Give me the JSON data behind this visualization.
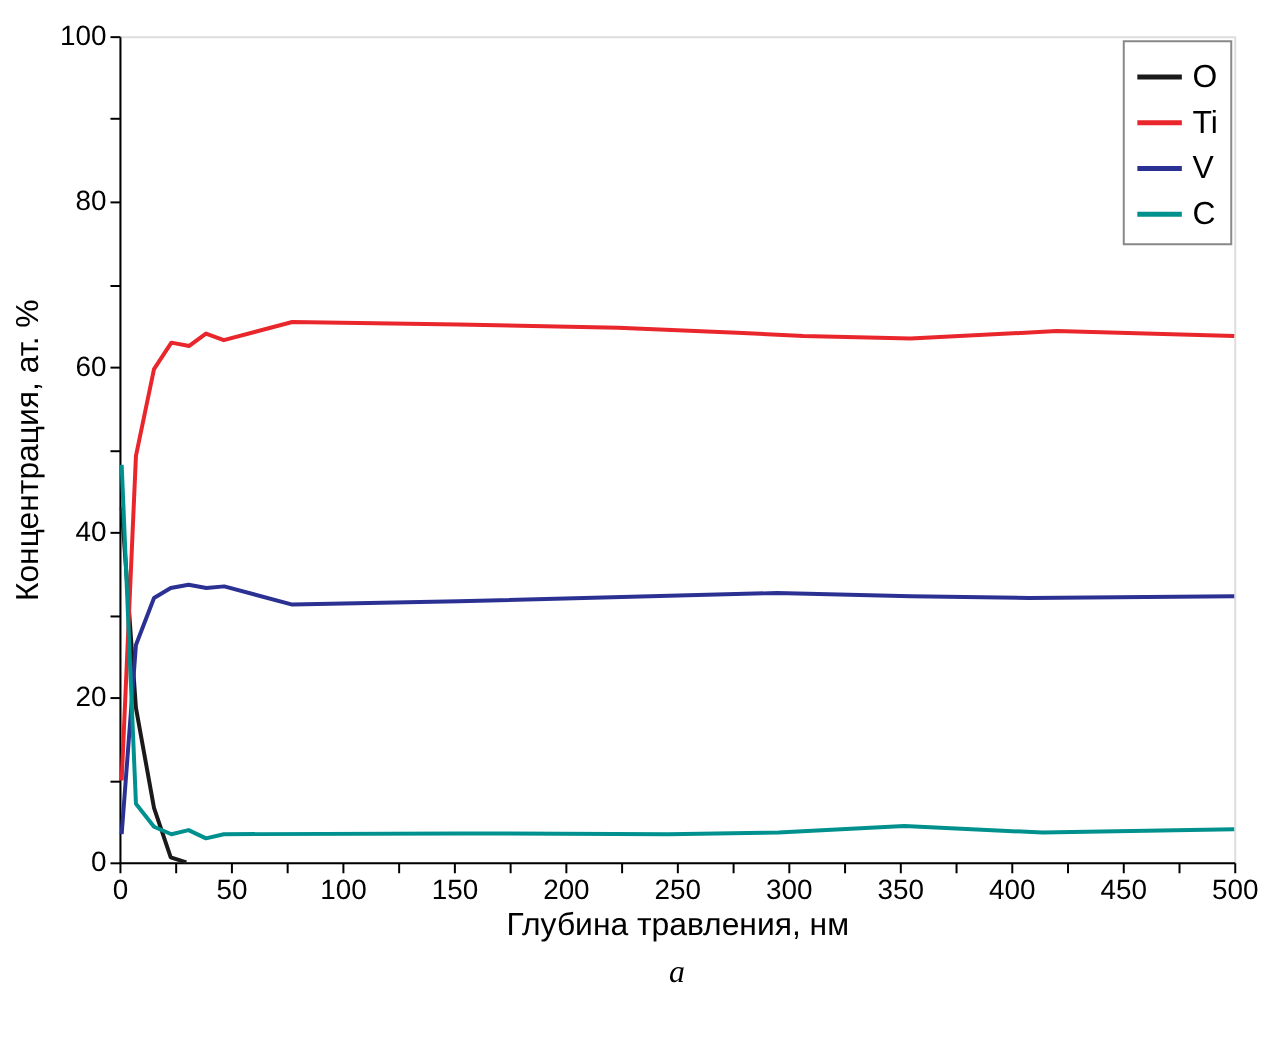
{
  "chart_data": {
    "type": "line",
    "xlabel": "Глубина травления, нм",
    "ylabel": "Концентрация, ат. %",
    "annotations": [
      "a"
    ],
    "xlim": [
      0,
      500
    ],
    "ylim": [
      0,
      100
    ],
    "xticks": [
      0,
      {
        "value": 25,
        "label": null
      },
      50,
      {
        "value": 75,
        "label": null
      },
      100,
      {
        "value": 125,
        "label": null
      },
      150,
      {
        "value": 175,
        "label": null
      },
      200,
      {
        "value": 225,
        "label": null
      },
      250,
      {
        "value": 275,
        "label": null
      },
      300,
      {
        "value": 325,
        "label": null
      },
      350,
      {
        "value": 375,
        "label": null
      },
      400,
      {
        "value": 425,
        "label": null
      },
      450,
      {
        "value": 475,
        "label": null
      },
      500
    ],
    "yticks": [
      0,
      {
        "value": 10,
        "label": null
      },
      20,
      {
        "value": 30,
        "label": null
      },
      40,
      {
        "value": 50,
        "label": null
      },
      60,
      {
        "value": 70,
        "label": null
      },
      80,
      {
        "value": 90,
        "label": null
      },
      100
    ],
    "grid": false,
    "legend": "top right",
    "marker": "none",
    "line_style": "solid",
    "series": [
      {
        "name": "O",
        "color": "#1a1a1a",
        "x": [
          1,
          7.4,
          15.5,
          23,
          30
        ],
        "values": [
          43,
          18.7,
          6.6,
          0.6,
          0
        ]
      },
      {
        "name": "Ti",
        "color": "#e8262b",
        "x": [
          1,
          7.4,
          15.5,
          23.3,
          31.3,
          38.8,
          46.8,
          77.5,
          152,
          223.6,
          277,
          306.7,
          354.8,
          420.4,
          500
        ],
        "values": [
          9.9,
          49.2,
          59.7,
          62.9,
          62.5,
          64,
          63.2,
          65.4,
          65.1,
          64.7,
          64.1,
          63.7,
          63.4,
          64.3,
          63.7
        ]
      },
      {
        "name": "V",
        "color": "#2b3192",
        "x": [
          1,
          7.4,
          15.5,
          23,
          31,
          39,
          47,
          77.5,
          152,
          295,
          355,
          408,
          500
        ],
        "values": [
          3.4,
          26.3,
          32,
          33.2,
          33.6,
          33.2,
          33.4,
          31.2,
          31.6,
          32.6,
          32.2,
          32,
          32.2
        ]
      },
      {
        "name": "C",
        "color": "#00918f",
        "x": [
          1,
          7.4,
          15.5,
          23.3,
          31,
          38.8,
          46.8,
          152,
          246,
          295.5,
          352,
          414,
          500
        ],
        "values": [
          48.1,
          7.1,
          4.3,
          3.4,
          3.9,
          2.9,
          3.4,
          3.5,
          3.4,
          3.6,
          4.4,
          3.6,
          4.0
        ]
      }
    ]
  }
}
